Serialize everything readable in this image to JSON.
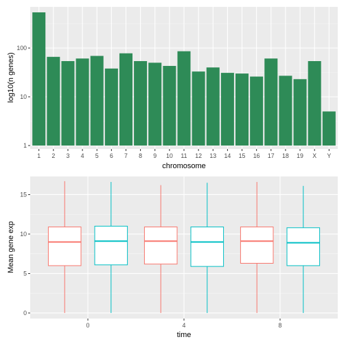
{
  "colors": {
    "panel_background": "#ebebeb",
    "grid_major": "#ffffff",
    "grid_minor": "#f5f5f5",
    "bar_fill": "#2e8b57",
    "group_0": "#f8766d",
    "group_1": "#00bfc4"
  },
  "chart_data": [
    {
      "type": "bar",
      "title": "",
      "xlabel": "chromosome",
      "ylabel": "log10(n genes)",
      "y_scale": "log10",
      "ylim": [
        0.85,
        700
      ],
      "y_ticks": [
        1,
        10,
        100
      ],
      "y_tick_labels": [
        "1",
        "10",
        "100"
      ],
      "grid": true,
      "categories": [
        "1",
        "2",
        "3",
        "4",
        "5",
        "6",
        "7",
        "8",
        "9",
        "10",
        "11",
        "12",
        "13",
        "14",
        "15",
        "16",
        "17",
        "18",
        "19",
        "X",
        "Y"
      ],
      "values": [
        540,
        66,
        54,
        61,
        69,
        38,
        78,
        54,
        50,
        43,
        86,
        33,
        40,
        31,
        30,
        26,
        61,
        27,
        23,
        54,
        5
      ]
    },
    {
      "type": "box",
      "title": "",
      "xlabel": "time",
      "ylabel": "Mean gene exp",
      "ylim": [
        -0.7,
        17.3
      ],
      "y_ticks": [
        0,
        5,
        10,
        15
      ],
      "y_tick_labels": [
        "0",
        "5",
        "10",
        "15"
      ],
      "grid": true,
      "categories": [
        "0",
        "4",
        "8"
      ],
      "series": [
        {
          "boxes": [
            {
              "min": 0,
              "q1": 6.0,
              "median": 9.0,
              "q3": 10.9,
              "max": 16.7
            },
            {
              "min": 0,
              "q1": 6.2,
              "median": 9.1,
              "q3": 10.9,
              "max": 16.2
            },
            {
              "min": 0,
              "q1": 6.3,
              "median": 9.1,
              "q3": 10.9,
              "max": 16.6
            }
          ]
        },
        {
          "boxes": [
            {
              "min": 0,
              "q1": 6.1,
              "median": 9.1,
              "q3": 11.0,
              "max": 16.6
            },
            {
              "min": 0,
              "q1": 5.9,
              "median": 9.0,
              "q3": 10.9,
              "max": 16.5
            },
            {
              "min": 0,
              "q1": 6.0,
              "median": 8.9,
              "q3": 10.8,
              "max": 16.1
            }
          ]
        }
      ]
    }
  ]
}
